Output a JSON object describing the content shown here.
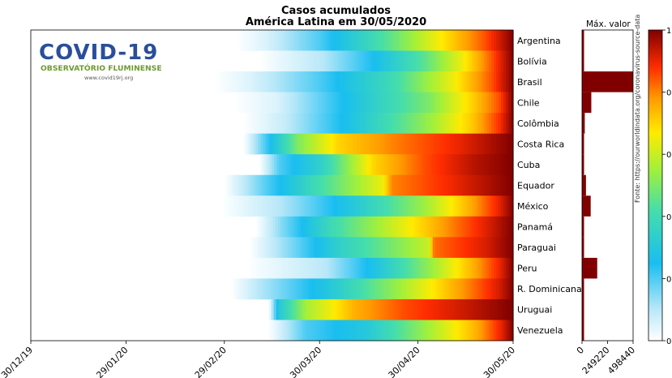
{
  "title_line1": "Casos acumulados",
  "title_line2": "América Latina em 30/05/2020",
  "logo": {
    "title": "COVID-19",
    "subtitle": "OBSERVATÓRIO FLUMINENSE",
    "url": "www.covid19rj.org"
  },
  "source_note": "Fonte: https://ourworldindata.org/coronavirus-source-data",
  "max_panel_label": "Máx. valor",
  "colors": {
    "logo_blue": "#2a4e9a",
    "logo_green": "#6d9b2f",
    "bar_color": "#800000"
  },
  "chart_data": [
    {
      "type": "heatmap",
      "xlabel": "",
      "ylabel": "",
      "x_ticks": [
        "30/12/19",
        "29/01/20",
        "29/02/20",
        "30/03/20",
        "30/04/20",
        "30/05/20"
      ],
      "x_range": [
        "30/12/19",
        "30/05/20"
      ],
      "value_range": [
        0,
        1
      ],
      "colorbar_ticks": [
        "0",
        "0.",
        "0.",
        "0.",
        "0.",
        "1"
      ],
      "rows": [
        {
          "name": "Argentina",
          "first_case": "2020-03-04",
          "profile": [
            [
              0,
              0
            ],
            [
              0.1,
              0.05
            ],
            [
              0.3,
              0.2
            ],
            [
              0.55,
              0.45
            ],
            [
              0.75,
              0.68
            ],
            [
              0.9,
              0.85
            ],
            [
              1,
              1
            ]
          ]
        },
        {
          "name": "Bolívia",
          "first_case": "2020-03-11",
          "profile": [
            [
              0,
              0
            ],
            [
              0.25,
              0.1
            ],
            [
              0.45,
              0.25
            ],
            [
              0.65,
              0.45
            ],
            [
              0.8,
              0.65
            ],
            [
              0.92,
              0.85
            ],
            [
              1,
              1
            ]
          ]
        },
        {
          "name": "Brasil",
          "first_case": "2020-02-26",
          "profile": [
            [
              0,
              0
            ],
            [
              0.12,
              0.05
            ],
            [
              0.35,
              0.2
            ],
            [
              0.6,
              0.4
            ],
            [
              0.8,
              0.65
            ],
            [
              0.93,
              0.85
            ],
            [
              1,
              1
            ]
          ]
        },
        {
          "name": "Chile",
          "first_case": "2020-03-03",
          "profile": [
            [
              0,
              0
            ],
            [
              0.15,
              0.05
            ],
            [
              0.45,
              0.3
            ],
            [
              0.7,
              0.5
            ],
            [
              0.85,
              0.7
            ],
            [
              0.95,
              0.85
            ],
            [
              1,
              1
            ]
          ]
        },
        {
          "name": "Colômbia",
          "first_case": "2020-03-06",
          "profile": [
            [
              0,
              0
            ],
            [
              0.15,
              0.08
            ],
            [
              0.4,
              0.28
            ],
            [
              0.7,
              0.55
            ],
            [
              0.85,
              0.72
            ],
            [
              0.95,
              0.88
            ],
            [
              1,
              1
            ]
          ]
        },
        {
          "name": "Costa Rica",
          "first_case": "2020-03-06",
          "profile": [
            [
              0,
              0
            ],
            [
              0.1,
              0.25
            ],
            [
              0.2,
              0.5
            ],
            [
              0.35,
              0.7
            ],
            [
              0.55,
              0.8
            ],
            [
              0.8,
              0.9
            ],
            [
              1,
              1
            ]
          ]
        },
        {
          "name": "Cuba",
          "first_case": "2020-03-11",
          "profile": [
            [
              0,
              0
            ],
            [
              0.08,
              0.2
            ],
            [
              0.25,
              0.35
            ],
            [
              0.45,
              0.7
            ],
            [
              0.65,
              0.85
            ],
            [
              0.85,
              0.95
            ],
            [
              1,
              1
            ]
          ]
        },
        {
          "name": "Equador",
          "first_case": "2020-02-29",
          "profile": [
            [
              0,
              0
            ],
            [
              0.15,
              0.2
            ],
            [
              0.32,
              0.4
            ],
            [
              0.55,
              0.65
            ],
            [
              0.58,
              0.8
            ],
            [
              0.8,
              0.9
            ],
            [
              1,
              1
            ]
          ]
        },
        {
          "name": "México",
          "first_case": "2020-02-28",
          "profile": [
            [
              0,
              0
            ],
            [
              0.2,
              0.1
            ],
            [
              0.45,
              0.3
            ],
            [
              0.7,
              0.55
            ],
            [
              0.85,
              0.75
            ],
            [
              0.95,
              0.9
            ],
            [
              1,
              1
            ]
          ]
        },
        {
          "name": "Panamá",
          "first_case": "2020-03-10",
          "profile": [
            [
              0,
              0
            ],
            [
              0.1,
              0.15
            ],
            [
              0.3,
              0.4
            ],
            [
              0.55,
              0.62
            ],
            [
              0.78,
              0.82
            ],
            [
              0.92,
              0.93
            ],
            [
              1,
              1
            ]
          ]
        },
        {
          "name": "Paraguai",
          "first_case": "2020-03-08",
          "profile": [
            [
              0,
              0
            ],
            [
              0.1,
              0.1
            ],
            [
              0.35,
              0.35
            ],
            [
              0.68,
              0.6
            ],
            [
              0.7,
              0.82
            ],
            [
              0.9,
              0.92
            ],
            [
              1,
              1
            ]
          ]
        },
        {
          "name": "Peru",
          "first_case": "2020-03-07",
          "profile": [
            [
              0,
              0
            ],
            [
              0.3,
              0.1
            ],
            [
              0.5,
              0.3
            ],
            [
              0.7,
              0.55
            ],
            [
              0.85,
              0.75
            ],
            [
              0.95,
              0.9
            ],
            [
              1,
              1
            ]
          ]
        },
        {
          "name": "R. Dominicana",
          "first_case": "2020-03-02",
          "profile": [
            [
              0,
              0
            ],
            [
              0.1,
              0.1
            ],
            [
              0.35,
              0.3
            ],
            [
              0.6,
              0.55
            ],
            [
              0.82,
              0.78
            ],
            [
              0.95,
              0.92
            ],
            [
              1,
              1
            ]
          ]
        },
        {
          "name": "Uruguai",
          "first_case": "2020-03-14",
          "profile": [
            [
              0,
              0
            ],
            [
              0.04,
              0.3
            ],
            [
              0.15,
              0.55
            ],
            [
              0.35,
              0.75
            ],
            [
              0.55,
              0.85
            ],
            [
              0.8,
              0.93
            ],
            [
              1,
              1
            ]
          ]
        },
        {
          "name": "Venezuela",
          "first_case": "2020-03-14",
          "profile": [
            [
              0,
              0
            ],
            [
              0.15,
              0.2
            ],
            [
              0.4,
              0.3
            ],
            [
              0.65,
              0.55
            ],
            [
              0.85,
              0.75
            ],
            [
              0.95,
              0.9
            ],
            [
              1,
              1
            ]
          ]
        }
      ]
    },
    {
      "type": "bar",
      "orientation": "horizontal",
      "title": "Máx. valor",
      "categories": [
        "Argentina",
        "Bolívia",
        "Brasil",
        "Chile",
        "Colômbia",
        "Costa Rica",
        "Cuba",
        "Equador",
        "México",
        "Panamá",
        "Paraguai",
        "Peru",
        "R. Dominicana",
        "Uruguai",
        "Venezuela"
      ],
      "values": [
        16214,
        8731,
        498440,
        90638,
        26734,
        1015,
        2045,
        38571,
        84627,
        12531,
        877,
        148285,
        16908,
        816,
        1325
      ],
      "xlim": [
        0,
        498440
      ],
      "x_ticks": [
        "0",
        "249220",
        "498440"
      ]
    }
  ]
}
